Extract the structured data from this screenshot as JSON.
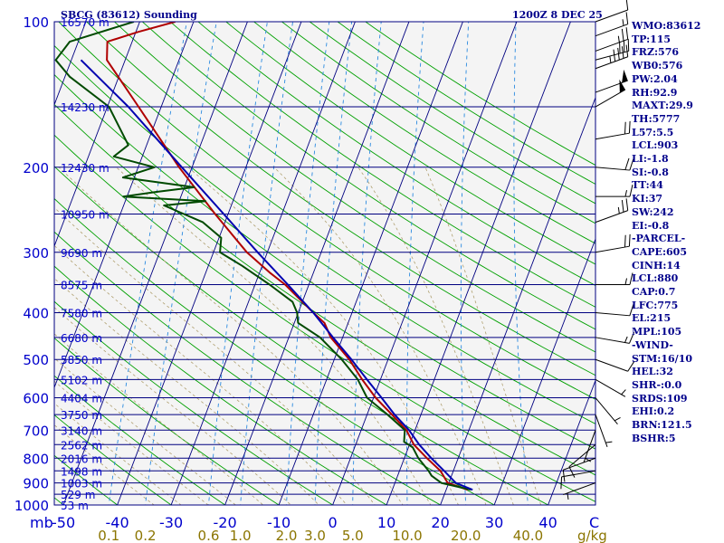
{
  "header": {
    "station": "SBCG (83612) Sounding",
    "time": "1200Z  8 DEC 25"
  },
  "chart_data": {
    "type": "line",
    "subtype": "skew-T log-P sounding",
    "xlim": [
      -50,
      50
    ],
    "ylim": [
      1000,
      100
    ],
    "y_scale": "log",
    "pressure_ticks": [
      "100",
      "200",
      "300",
      "400",
      "500",
      "600",
      "700",
      "800",
      "900",
      "1000"
    ],
    "temperature_ticks": [
      "-50",
      "-40",
      "-30",
      "-20",
      "-10",
      "0",
      "10",
      "20",
      "30",
      "40"
    ],
    "x_axis_unit_left": "mb",
    "x_axis_unit_right": "C",
    "mixing_ratio_labels": [
      "0.1",
      "0.2",
      "0.6",
      "1.0",
      "2.0",
      "3.0",
      "5.0",
      "10.0",
      "20.0",
      "40.0"
    ],
    "mixing_ratio_unit": "g/kg",
    "height_labels": [
      {
        "p": 100,
        "text": "16570 m"
      },
      {
        "p": 150,
        "text": "14230 m"
      },
      {
        "p": 200,
        "text": "12430 m"
      },
      {
        "p": 250,
        "text": "10950 m"
      },
      {
        "p": 300,
        "text": "9690 m"
      },
      {
        "p": 350,
        "text": "8575 m"
      },
      {
        "p": 400,
        "text": "7580 m"
      },
      {
        "p": 450,
        "text": "6680 m"
      },
      {
        "p": 500,
        "text": "5850 m"
      },
      {
        "p": 550,
        "text": "5102 m"
      },
      {
        "p": 600,
        "text": "4404 m"
      },
      {
        "p": 650,
        "text": "3750 m"
      },
      {
        "p": 700,
        "text": "3140 m"
      },
      {
        "p": 750,
        "text": "2562 m"
      },
      {
        "p": 800,
        "text": "2016 m"
      },
      {
        "p": 850,
        "text": "1498 m"
      },
      {
        "p": 900,
        "text": "1003 m"
      },
      {
        "p": 950,
        "text": "529 m"
      },
      {
        "p": 1000,
        "text": "53 m"
      }
    ],
    "series": [
      {
        "color": "#b00000",
        "points": [
          [
            930,
            24
          ],
          [
            900,
            19.8
          ],
          [
            850,
            17.6
          ],
          [
            800,
            14.2
          ],
          [
            750,
            10.8
          ],
          [
            700,
            8.4
          ],
          [
            650,
            4.6
          ],
          [
            600,
            0.4
          ],
          [
            550,
            -3.4
          ],
          [
            500,
            -7.2
          ],
          [
            450,
            -12.2
          ],
          [
            420,
            -14.4
          ],
          [
            400,
            -17.2
          ],
          [
            350,
            -24.4
          ],
          [
            330,
            -28.2
          ],
          [
            300,
            -33.8
          ],
          [
            250,
            -42.4
          ],
          [
            200,
            -52.4
          ],
          [
            150,
            -64.2
          ],
          [
            120,
            -73.4
          ],
          [
            110,
            -74.6
          ],
          [
            105,
            -69.6
          ],
          [
            100,
            -63.4
          ]
        ]
      },
      {
        "color": "#004a00",
        "points": [
          [
            930,
            24.6
          ],
          [
            900,
            18.6
          ],
          [
            870,
            16.3
          ],
          [
            850,
            15.4
          ],
          [
            800,
            12.6
          ],
          [
            760,
            10.8
          ],
          [
            740,
            8.8
          ],
          [
            700,
            8.1
          ],
          [
            650,
            3.8
          ],
          [
            600,
            -1.2
          ],
          [
            550,
            -4.2
          ],
          [
            500,
            -8.6
          ],
          [
            450,
            -14.2
          ],
          [
            420,
            -19.3
          ],
          [
            400,
            -20.2
          ],
          [
            380,
            -21.8
          ],
          [
            350,
            -27.3
          ],
          [
            320,
            -33.7
          ],
          [
            300,
            -38.8
          ],
          [
            280,
            -39.6
          ],
          [
            260,
            -44.1
          ],
          [
            240,
            -52.5
          ],
          [
            235,
            -45.1
          ],
          [
            230,
            -60.7
          ],
          [
            225,
            -55.0
          ],
          [
            220,
            -48.2
          ],
          [
            210,
            -62.1
          ],
          [
            200,
            -57.0
          ],
          [
            190,
            -65.3
          ],
          [
            180,
            -63.4
          ],
          [
            150,
            -69.7
          ],
          [
            130,
            -79.1
          ],
          [
            120,
            -82.9
          ],
          [
            110,
            -81.6
          ],
          [
            100,
            -71.1
          ]
        ]
      },
      {
        "color": "#0000b0",
        "points": [
          [
            930,
            24.9
          ],
          [
            900,
            21.3
          ],
          [
            850,
            18.3
          ],
          [
            800,
            15.0
          ],
          [
            750,
            11.8
          ],
          [
            700,
            8.9
          ],
          [
            650,
            5.1
          ],
          [
            600,
            1.5
          ],
          [
            550,
            -2.5
          ],
          [
            500,
            -6.8
          ],
          [
            450,
            -11.8
          ],
          [
            400,
            -17.2
          ],
          [
            350,
            -23.9
          ],
          [
            300,
            -31.8
          ],
          [
            250,
            -40.8
          ],
          [
            200,
            -51.9
          ],
          [
            150,
            -66.1
          ],
          [
            120,
            -78.2
          ]
        ]
      }
    ],
    "wind_barbs": [
      {
        "p": 100,
        "dir": 70,
        "spd": 10
      },
      {
        "p": 107,
        "dir": 70,
        "spd": 15
      },
      {
        "p": 115,
        "dir": 70,
        "spd": 25
      },
      {
        "p": 120,
        "dir": 75,
        "spd": 30
      },
      {
        "p": 125,
        "dir": 70,
        "spd": 45
      },
      {
        "p": 140,
        "dir": 70,
        "spd": 50
      },
      {
        "p": 150,
        "dir": 60,
        "spd": 50
      },
      {
        "p": 175,
        "dir": 80,
        "spd": 20
      },
      {
        "p": 200,
        "dir": 95,
        "spd": 20
      },
      {
        "p": 230,
        "dir": 90,
        "spd": 15
      },
      {
        "p": 260,
        "dir": 70,
        "spd": 25
      },
      {
        "p": 300,
        "dir": 80,
        "spd": 20
      },
      {
        "p": 350,
        "dir": 90,
        "spd": 15
      },
      {
        "p": 400,
        "dir": 95,
        "spd": 10
      },
      {
        "p": 450,
        "dir": 100,
        "spd": 15
      },
      {
        "p": 500,
        "dir": 110,
        "spd": 10
      },
      {
        "p": 550,
        "dir": 120,
        "spd": 5
      },
      {
        "p": 600,
        "dir": 140,
        "spd": 5
      },
      {
        "p": 650,
        "dir": 160,
        "spd": 5
      },
      {
        "p": 700,
        "dir": 200,
        "spd": 5
      },
      {
        "p": 750,
        "dir": 230,
        "spd": 10
      },
      {
        "p": 800,
        "dir": 250,
        "spd": 10
      },
      {
        "p": 850,
        "dir": 260,
        "spd": 10
      },
      {
        "p": 900,
        "dir": 250,
        "spd": 5
      }
    ]
  },
  "indices": [
    "WMO:83612",
    "TP:115",
    "FRZ:576",
    "WB0:576",
    "PW:2.04",
    "RH:92.9",
    "MAXT:29.9",
    "TH:5777",
    "L57:5.5",
    "LCL:903",
    "LI:-1.8",
    "SI:-0.8",
    "TT:44",
    "KI:37",
    "SW:242",
    "EI:-0.8",
    "-PARCEL-",
    "CAPE:605",
    "CINH:14",
    "LCL:880",
    "CAP:0.7",
    "LFC:775",
    "EL:215",
    "MPL:105",
    "-WIND-",
    "STM:16/10",
    "HEL:32",
    "SHR-:0.0",
    "SRDS:109",
    "EHI:0.2",
    "BRN:121.5",
    "BSHR:5"
  ],
  "colors": {
    "frame": "#000080",
    "isobar": "#000080",
    "isotherm": "#000080",
    "dry_adiabat": "#00a000",
    "moist_adiabat": "#b0a070",
    "mixing_ratio": "#2a8ae0",
    "temperature": "#b00000",
    "dewpoint": "#004a00",
    "parcel": "#0000b0",
    "wind": "#000000"
  }
}
